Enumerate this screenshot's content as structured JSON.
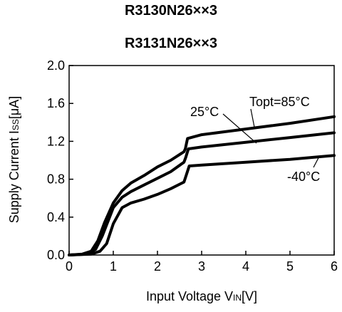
{
  "chart_data": {
    "type": "line",
    "title": "R3130N26××3",
    "subtitle": "R3131N26××3",
    "xlabel": "Input Voltage VIN[V]",
    "ylabel": "Supply Current ISS[μA]",
    "xlim": [
      0,
      6
    ],
    "ylim": [
      0,
      2.0
    ],
    "xticks": [
      "0",
      "1",
      "2",
      "3",
      "4",
      "5",
      "6"
    ],
    "yticks": [
      "0.0",
      "0.4",
      "0.8",
      "1.2",
      "1.6",
      "2.0"
    ],
    "grid": false,
    "series": [
      {
        "name": "Topt=85°C",
        "x": [
          0,
          0.3,
          0.5,
          0.65,
          0.8,
          1.0,
          1.2,
          1.4,
          1.7,
          2.0,
          2.3,
          2.6,
          2.63,
          2.68,
          3.0,
          4.0,
          5.0,
          6.0
        ],
        "y": [
          0,
          0.01,
          0.04,
          0.15,
          0.34,
          0.55,
          0.68,
          0.76,
          0.84,
          0.93,
          1.0,
          1.09,
          1.12,
          1.23,
          1.27,
          1.33,
          1.39,
          1.46
        ]
      },
      {
        "name": "25°C",
        "x": [
          0,
          0.4,
          0.6,
          0.75,
          0.9,
          1.0,
          1.2,
          1.4,
          1.7,
          2.0,
          2.3,
          2.6,
          2.64,
          2.7,
          3.0,
          4.0,
          5.0,
          6.0
        ],
        "y": [
          0,
          0.01,
          0.06,
          0.2,
          0.38,
          0.5,
          0.61,
          0.67,
          0.74,
          0.81,
          0.88,
          0.98,
          1.03,
          1.12,
          1.14,
          1.19,
          1.24,
          1.29
        ]
      },
      {
        "name": "-40°C",
        "x": [
          0,
          0.5,
          0.7,
          0.85,
          1.0,
          1.2,
          1.4,
          1.7,
          2.0,
          2.3,
          2.6,
          2.65,
          2.72,
          3.0,
          4.0,
          5.0,
          6.0
        ],
        "y": [
          0,
          0.01,
          0.04,
          0.12,
          0.33,
          0.5,
          0.55,
          0.59,
          0.64,
          0.7,
          0.77,
          0.84,
          0.94,
          0.95,
          0.98,
          1.01,
          1.05
        ]
      }
    ],
    "annotations": [
      {
        "text": "Topt=85°C",
        "series": 0
      },
      {
        "text": "25°C",
        "series": 1
      },
      {
        "text": "-40°C",
        "series": 2
      }
    ]
  }
}
